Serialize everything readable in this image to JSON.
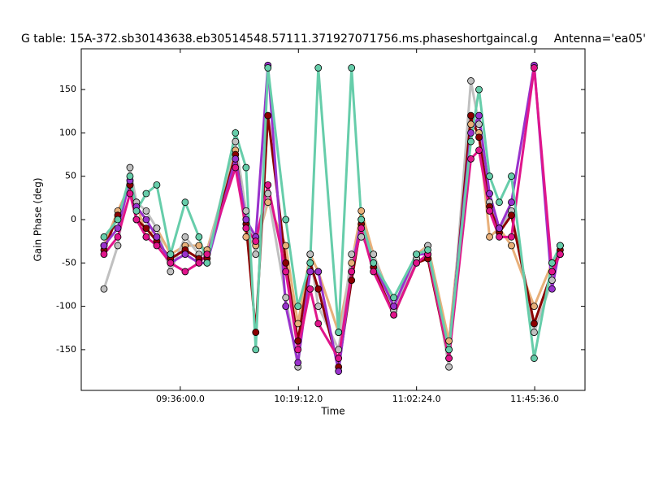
{
  "chart_data": {
    "type": "line",
    "title": "G table: 15A-372.sb30143638.eb30514548.57111.371927071756.ms.phaseshortgaincal.g",
    "subtitle": "Antenna='ea05'",
    "x_label": "Time",
    "y_label": "Gain Phase (deg)",
    "x": [
      32886,
      33189,
      33456,
      33598,
      33812,
      34044,
      34346,
      34667,
      34970,
      35148,
      35771,
      36003,
      36216,
      36483,
      36875,
      37142,
      37410,
      37588,
      38033,
      38318,
      38532,
      38799,
      39244,
      39743,
      39992,
      40455,
      40936,
      41114,
      41346,
      41559,
      41826,
      42325,
      42717,
      42895
    ],
    "xlim": [
      32387,
      43440
    ],
    "xticks": [
      {
        "value": 34560,
        "label": "09:36:00.0"
      },
      {
        "value": 37152,
        "label": "10:19:12.0"
      },
      {
        "value": 39744,
        "label": "11:02:24.0"
      },
      {
        "value": 42336,
        "label": "11:45:36.0"
      }
    ],
    "ylim": [
      -197,
      197
    ],
    "yticks": [
      -150,
      -100,
      -50,
      0,
      50,
      100,
      150
    ],
    "series": [
      {
        "color": "#e8b07a",
        "values": [
          -30,
          10,
          40,
          20,
          -20,
          -10,
          -40,
          -30,
          -30,
          -35,
          80,
          -20,
          -30,
          20,
          -30,
          -120,
          -40,
          -60,
          -130,
          -50,
          10,
          -40,
          -100,
          -40,
          -30,
          -140,
          110,
          100,
          -20,
          -10,
          -30,
          -100,
          -50,
          -40
        ]
      },
      {
        "color": "#c0c0c0",
        "values": [
          -80,
          -30,
          60,
          20,
          10,
          -10,
          -60,
          -20,
          -40,
          -40,
          90,
          10,
          -40,
          30,
          -90,
          -170,
          -40,
          -100,
          -150,
          -40,
          -20,
          -40,
          -105,
          -45,
          -30,
          -170,
          160,
          110,
          20,
          -10,
          10,
          -130,
          -70,
          -30
        ]
      },
      {
        "color": "#8b0000",
        "values": [
          -35,
          5,
          40,
          0,
          -10,
          -25,
          -45,
          -35,
          -45,
          -45,
          75,
          -5,
          -130,
          120,
          -50,
          -140,
          -50,
          -80,
          -170,
          -70,
          -5,
          -55,
          -110,
          -50,
          -45,
          -160,
          120,
          95,
          15,
          -15,
          5,
          -120,
          -60,
          -35
        ]
      },
      {
        "color": "#9932cc",
        "values": [
          -30,
          -10,
          45,
          15,
          0,
          -20,
          -50,
          -40,
          -50,
          -50,
          70,
          0,
          -20,
          178,
          -100,
          -165,
          -60,
          -60,
          -175,
          -60,
          0,
          -50,
          -100,
          -40,
          -40,
          -150,
          100,
          120,
          30,
          -10,
          20,
          178,
          -80,
          -30
        ]
      },
      {
        "color": "#e0158b",
        "values": [
          -40,
          -20,
          30,
          0,
          -20,
          -30,
          -50,
          -60,
          -50,
          -40,
          60,
          -10,
          -25,
          40,
          -60,
          -150,
          -80,
          -120,
          -160,
          -60,
          -10,
          -60,
          -110,
          -50,
          -40,
          -160,
          70,
          80,
          10,
          -20,
          -20,
          175,
          -60,
          -40
        ]
      },
      {
        "color": "#66cdaa",
        "values": [
          -20,
          0,
          50,
          10,
          30,
          40,
          -40,
          20,
          -20,
          -50,
          100,
          60,
          -150,
          175,
          0,
          -100,
          -50,
          175,
          -130,
          175,
          0,
          -50,
          -90,
          -40,
          -35,
          -150,
          90,
          150,
          50,
          20,
          50,
          -160,
          -50,
          -30
        ]
      }
    ]
  }
}
